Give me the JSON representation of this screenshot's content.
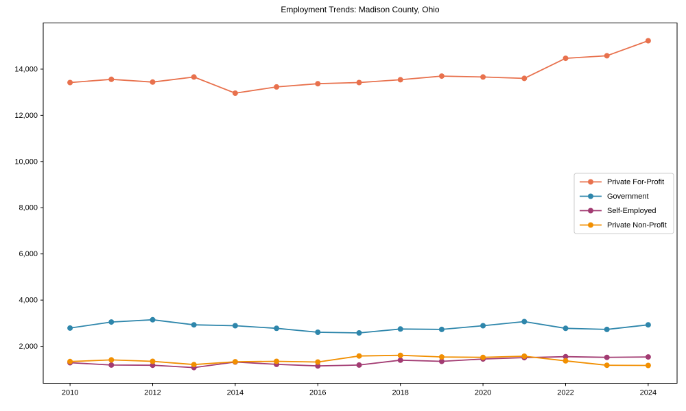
{
  "chart_data": {
    "type": "line",
    "title": "Employment Trends: Madison County, Ohio",
    "xlabel": "",
    "ylabel": "",
    "x": [
      2010,
      2011,
      2012,
      2013,
      2014,
      2015,
      2016,
      2017,
      2018,
      2019,
      2020,
      2021,
      2022,
      2023,
      2024
    ],
    "x_ticks": [
      2010,
      2012,
      2014,
      2016,
      2018,
      2020,
      2022,
      2024
    ],
    "x_tick_labels": [
      "2010",
      "2012",
      "2014",
      "2016",
      "2018",
      "2020",
      "2022",
      "2024"
    ],
    "y_ticks": [
      2000,
      4000,
      6000,
      8000,
      10000,
      12000,
      14000
    ],
    "y_tick_labels": [
      "2,000",
      "4,000",
      "6,000",
      "8,000",
      "10,000",
      "12,000",
      "14,000"
    ],
    "xlim": [
      2009.35,
      2024.7
    ],
    "ylim": [
      400,
      16000
    ],
    "grid": false,
    "legend_position": "center-right",
    "series": [
      {
        "name": "Private For-Profit",
        "color": "#e8714d",
        "values": [
          13420,
          13560,
          13440,
          13660,
          12960,
          13230,
          13370,
          13420,
          13540,
          13700,
          13660,
          13600,
          14470,
          14580,
          15230
        ]
      },
      {
        "name": "Government",
        "color": "#2e86ab",
        "values": [
          2790,
          3050,
          3150,
          2930,
          2890,
          2780,
          2610,
          2580,
          2750,
          2730,
          2890,
          3070,
          2780,
          2730,
          2930
        ]
      },
      {
        "name": "Self-Employed",
        "color": "#a23b72",
        "values": [
          1290,
          1190,
          1180,
          1080,
          1320,
          1220,
          1150,
          1190,
          1400,
          1350,
          1450,
          1510,
          1550,
          1520,
          1540
        ]
      },
      {
        "name": "Private Non-Profit",
        "color": "#f18f01",
        "values": [
          1340,
          1410,
          1350,
          1210,
          1330,
          1350,
          1320,
          1580,
          1610,
          1540,
          1520,
          1570,
          1370,
          1180,
          1170
        ]
      }
    ]
  }
}
